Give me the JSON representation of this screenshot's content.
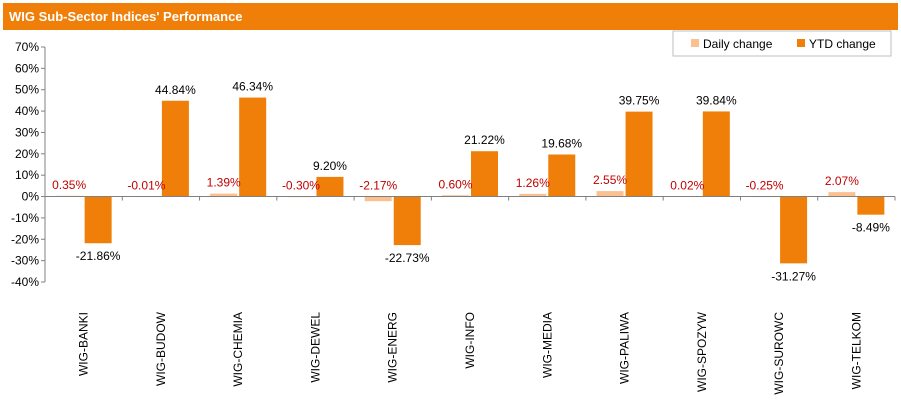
{
  "title": "WIG Sub-Sector Indices' Performance",
  "colors": {
    "title_bg": "#F07F09",
    "daily": "#FAC090",
    "ytd": "#F07F09",
    "daily_label": "#C00000",
    "axis": "#808080"
  },
  "chart_data": {
    "type": "bar",
    "title": "WIG Sub-Sector Indices' Performance",
    "categories": [
      "WIG-BANKI",
      "WIG-BUDOW",
      "WIG-CHEMIA",
      "WIG-DEWEL",
      "WIG-ENERG",
      "WIG-INFO",
      "WIG-MEDIA",
      "WIG-PALIWA",
      "WIG-SPOZYW",
      "WIG-SUROWC",
      "WIG-TELKOM"
    ],
    "series": [
      {
        "name": "Daily change",
        "values": [
          0.35,
          -0.01,
          1.39,
          -0.3,
          -2.17,
          0.6,
          1.26,
          2.55,
          0.02,
          -0.25,
          2.07
        ],
        "labels": [
          "0.35%",
          "-0.01%",
          "1.39%",
          "-0.30%",
          "-2.17%",
          "0.60%",
          "1.26%",
          "2.55%",
          "0.02%",
          "-0.25%",
          "2.07%"
        ]
      },
      {
        "name": "YTD change",
        "values": [
          -21.86,
          44.84,
          46.34,
          9.2,
          -22.73,
          21.22,
          19.68,
          39.75,
          39.84,
          -31.27,
          -8.49
        ],
        "labels": [
          "-21.86%",
          "44.84%",
          "46.34%",
          "9.20%",
          "-22.73%",
          "21.22%",
          "19.68%",
          "39.75%",
          "39.84%",
          "-31.27%",
          "-8.49%"
        ]
      }
    ],
    "ylim": [
      -40,
      70
    ],
    "yticks": [
      70,
      60,
      50,
      40,
      30,
      20,
      10,
      0,
      -10,
      -20,
      -30,
      -40
    ],
    "ytick_labels": [
      "70%",
      "60%",
      "50%",
      "40%",
      "30%",
      "20%",
      "10%",
      "0%",
      "-10%",
      "-20%",
      "-30%",
      "-40%"
    ],
    "grid": false,
    "legend": "top-right"
  }
}
